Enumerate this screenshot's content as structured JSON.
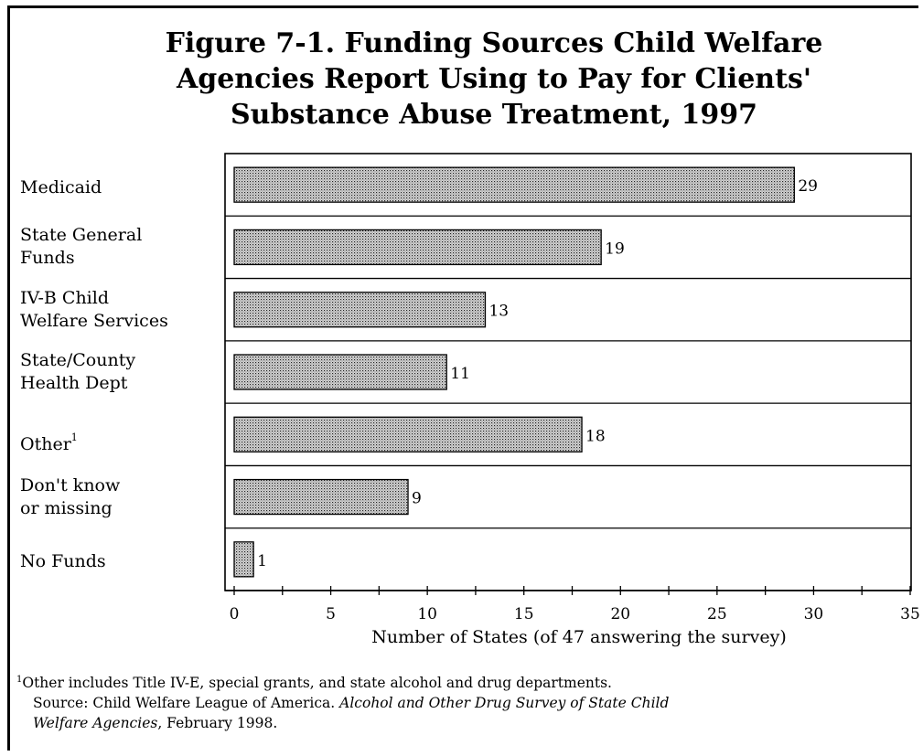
{
  "chart_data": {
    "type": "bar",
    "orientation": "horizontal",
    "title_lines": [
      "Figure 7-1.  Funding Sources Child Welfare",
      "Agencies Report Using to Pay for Clients'",
      "Substance Abuse Treatment, 1997"
    ],
    "categories": [
      [
        "Medicaid"
      ],
      [
        "State General",
        "Funds"
      ],
      [
        "IV-B Child",
        "Welfare Services"
      ],
      [
        "State/County",
        "Health Dept"
      ],
      [
        "Other"
      ],
      [
        "Don't know",
        "or missing"
      ],
      [
        "No Funds"
      ]
    ],
    "values": [
      29,
      19,
      13,
      11,
      18,
      9,
      1
    ],
    "data_labels": [
      "29",
      "19",
      "13",
      "11",
      "18",
      "9",
      "1"
    ],
    "other_superscript": "1",
    "xlabel": "Number of States (of 47 answering the survey)",
    "xlim": [
      0,
      35
    ],
    "xticks": [
      0,
      5,
      10,
      15,
      20,
      25,
      30,
      35
    ],
    "bar_pattern": "dotted-gray",
    "grid": false
  },
  "footnote": {
    "marker": "1",
    "text": "Other includes Title IV-E, special grants, and state alcohol and drug departments.",
    "source_prefix": "Source: Child Welfare League of America. ",
    "source_title_a": "Alcohol and Other Drug Survey of State Child",
    "source_title_b": "Welfare Agencies",
    "source_suffix": ", February 1998."
  }
}
